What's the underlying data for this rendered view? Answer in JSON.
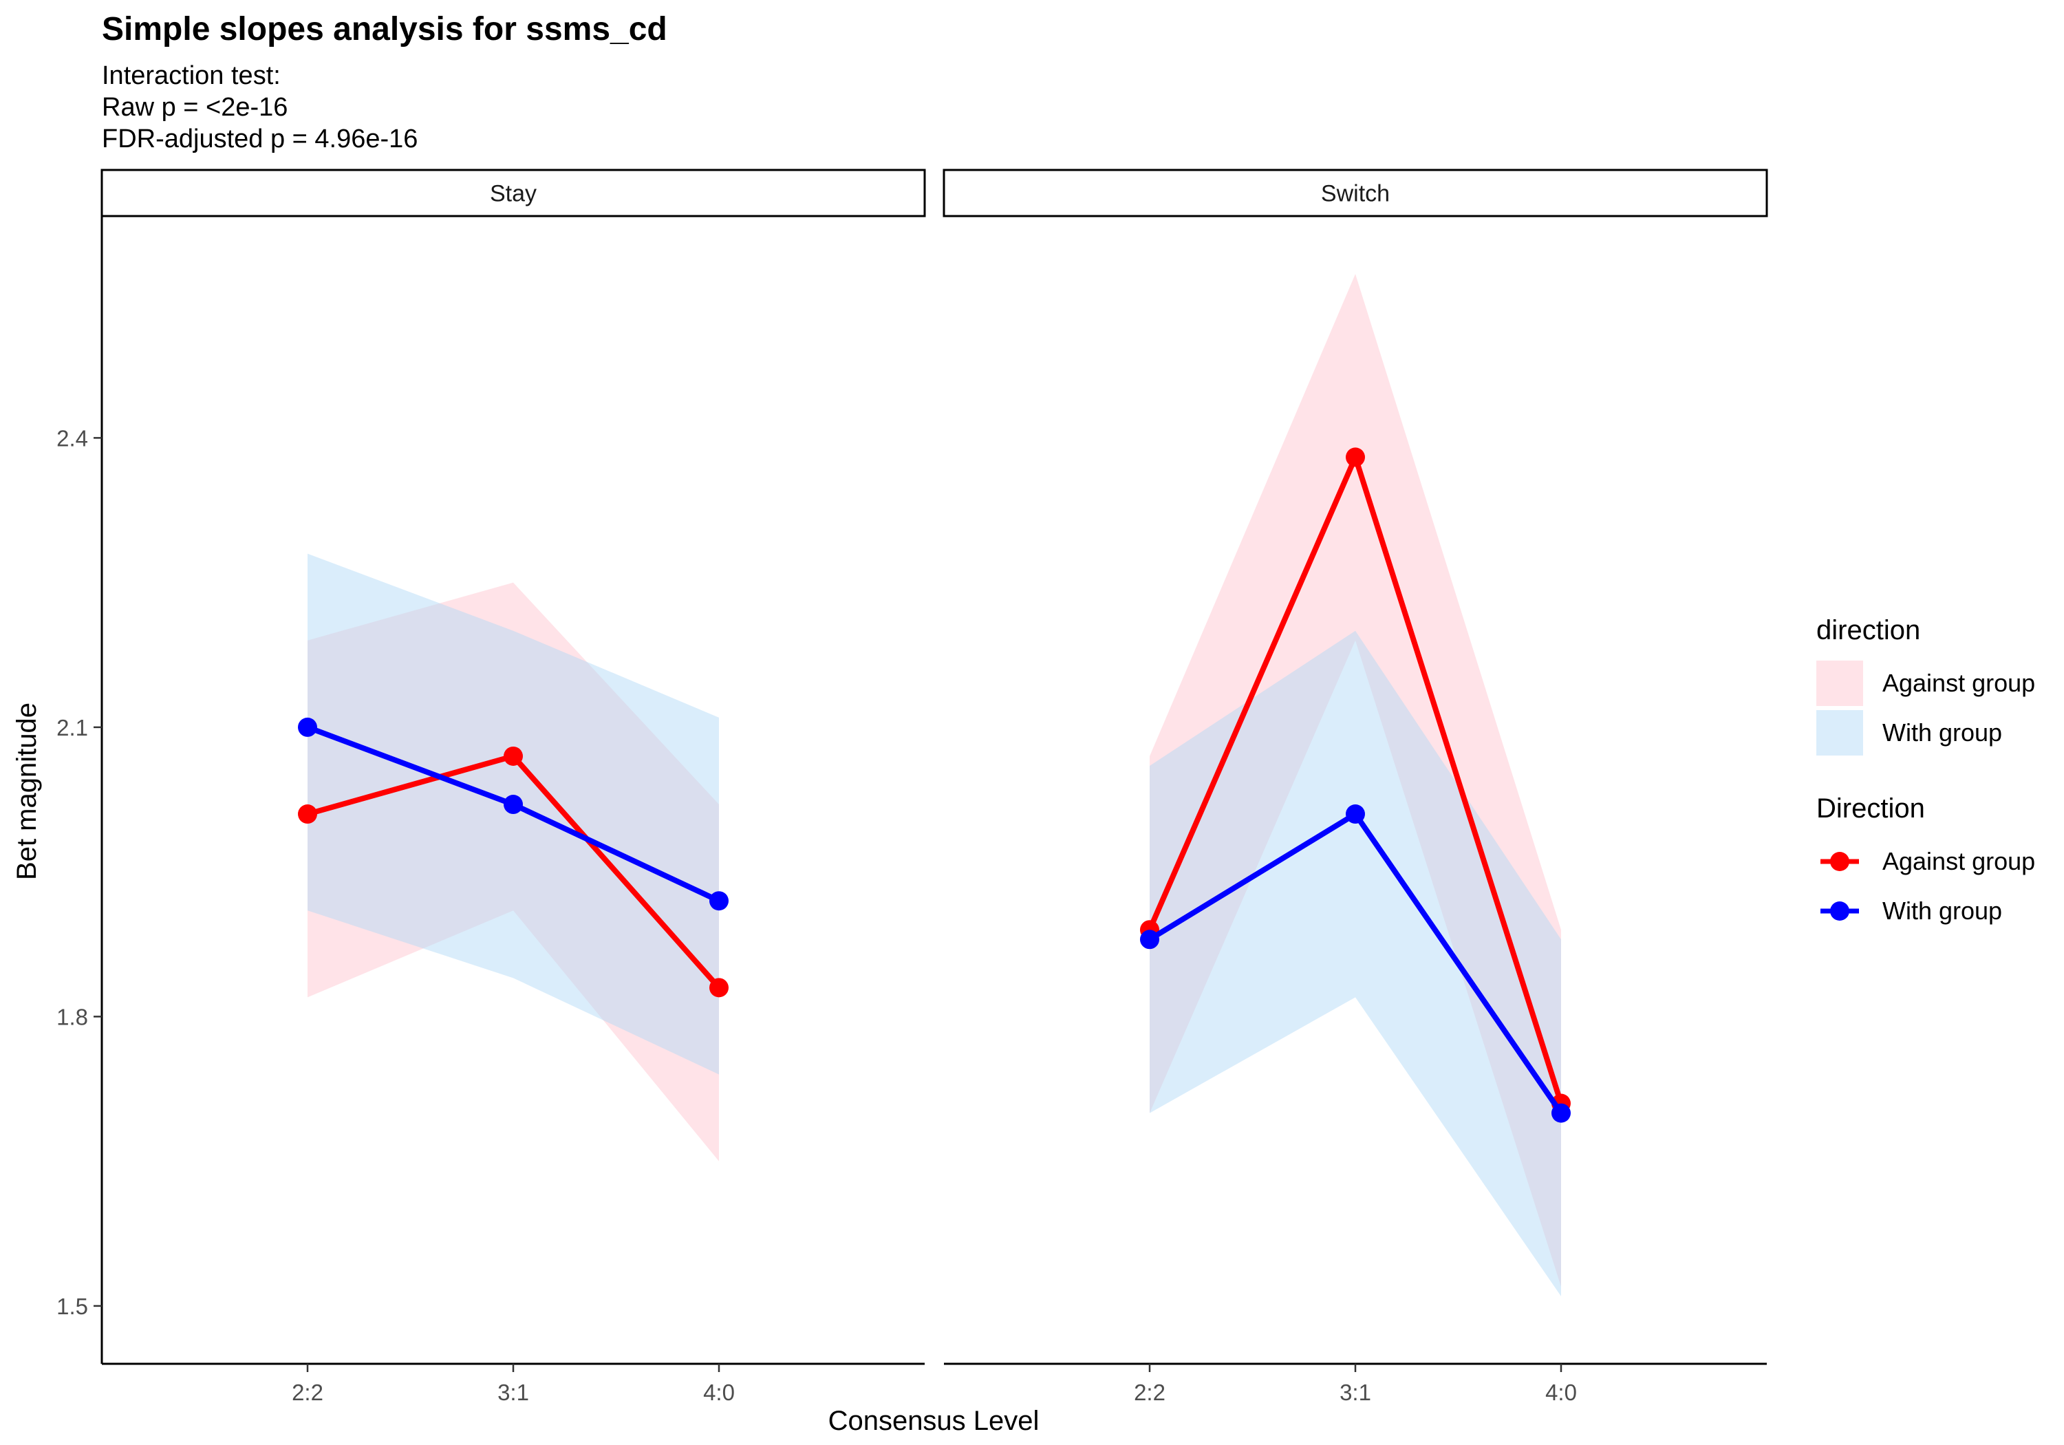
{
  "chart_data": {
    "type": "line",
    "title": "Simple slopes analysis for ssms_cd",
    "subtitle_lines": [
      "Interaction test:",
      "Raw p = <2e-16",
      "FDR-adjusted p = 4.96e-16"
    ],
    "xlabel": "Consensus Level",
    "ylabel": "Bet magnitude",
    "categories": [
      "2:2",
      "3:1",
      "4:0"
    ],
    "ylim": [
      1.44,
      2.63
    ],
    "yticks": [
      1.5,
      1.8,
      2.1,
      2.4
    ],
    "ytick_labels": [
      "1.5",
      "1.8",
      "2.1",
      "2.4"
    ],
    "grid": false,
    "legend_position": "right",
    "panels": [
      {
        "label": "Stay",
        "series": [
          {
            "name": "Against group",
            "color": "#FF0000",
            "ribbon_color": "#FFC0CB",
            "values": [
              2.01,
              2.07,
              1.83
            ],
            "lower": [
              1.82,
              1.91,
              1.65
            ],
            "upper": [
              2.19,
              2.25,
              2.02
            ]
          },
          {
            "name": "With group",
            "color": "#0000FF",
            "ribbon_color": "#ADD8F6",
            "values": [
              2.1,
              2.02,
              1.92
            ],
            "lower": [
              1.91,
              1.84,
              1.74
            ],
            "upper": [
              2.28,
              2.2,
              2.11
            ]
          }
        ]
      },
      {
        "label": "Switch",
        "series": [
          {
            "name": "Against group",
            "color": "#FF0000",
            "ribbon_color": "#FFC0CB",
            "values": [
              1.89,
              2.38,
              1.71
            ],
            "lower": [
              1.7,
              2.19,
              1.52
            ],
            "upper": [
              2.07,
              2.57,
              1.89
            ]
          },
          {
            "name": "With group",
            "color": "#0000FF",
            "ribbon_color": "#ADD8F6",
            "values": [
              1.88,
              2.01,
              1.7
            ],
            "lower": [
              1.7,
              1.82,
              1.51
            ],
            "upper": [
              2.06,
              2.2,
              1.88
            ]
          }
        ]
      }
    ],
    "legends": [
      {
        "title": "direction",
        "kind": "fill",
        "items": [
          {
            "label": "Against group",
            "color": "#FFC0CB"
          },
          {
            "label": "With group",
            "color": "#ADD8F6"
          }
        ]
      },
      {
        "title": "Direction",
        "kind": "line",
        "items": [
          {
            "label": "Against group",
            "color": "#FF0000"
          },
          {
            "label": "With group",
            "color": "#0000FF"
          }
        ]
      }
    ]
  }
}
